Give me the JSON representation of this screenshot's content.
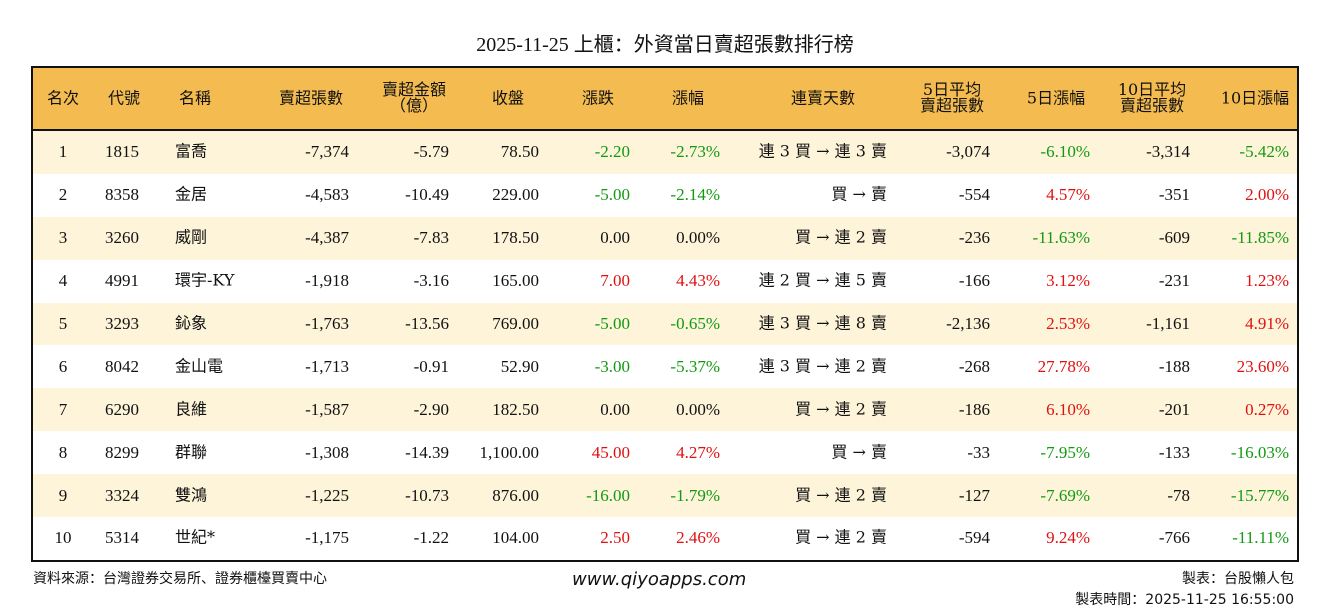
{
  "title": "2025-11-25 上櫃：外資當日賣超張數排行榜",
  "headers": [
    "名次",
    "代號",
    "名稱",
    "賣超張數",
    "賣超金額\n（億）",
    "收盤",
    "漲跌",
    "漲幅",
    "連賣天數",
    "5日平均\n賣超張數",
    "5日漲幅",
    "10日平均\n賣超張數",
    "10日漲幅"
  ],
  "colors": {
    "header_bg": "#F4BC50",
    "odd_row_bg": "#FDF4D9",
    "up": "#E01010",
    "down": "#119A11"
  },
  "rows": [
    [
      "1",
      "1815",
      "富喬",
      "-7,374",
      "-5.79",
      "78.50",
      "-2.20",
      "-2.73%",
      "連 3 買 → 連 3 賣",
      "-3,074",
      "-6.10%",
      "-3,314",
      "-5.42%"
    ],
    [
      "2",
      "8358",
      "金居",
      "-4,583",
      "-10.49",
      "229.00",
      "-5.00",
      "-2.14%",
      "買 → 賣",
      "-554",
      "4.57%",
      "-351",
      "2.00%"
    ],
    [
      "3",
      "3260",
      "威剛",
      "-4,387",
      "-7.83",
      "178.50",
      "0.00",
      "0.00%",
      "買 → 連 2 賣",
      "-236",
      "-11.63%",
      "-609",
      "-11.85%"
    ],
    [
      "4",
      "4991",
      "環宇-KY",
      "-1,918",
      "-3.16",
      "165.00",
      "7.00",
      "4.43%",
      "連 2 買 → 連 5 賣",
      "-166",
      "3.12%",
      "-231",
      "1.23%"
    ],
    [
      "5",
      "3293",
      "鈊象",
      "-1,763",
      "-13.56",
      "769.00",
      "-5.00",
      "-0.65%",
      "連 3 買 → 連 8 賣",
      "-2,136",
      "2.53%",
      "-1,161",
      "4.91%"
    ],
    [
      "6",
      "8042",
      "金山電",
      "-1,713",
      "-0.91",
      "52.90",
      "-3.00",
      "-5.37%",
      "連 3 買 → 連 2 賣",
      "-268",
      "27.78%",
      "-188",
      "23.60%"
    ],
    [
      "7",
      "6290",
      "良維",
      "-1,587",
      "-2.90",
      "182.50",
      "0.00",
      "0.00%",
      "買 → 連 2 賣",
      "-186",
      "6.10%",
      "-201",
      "0.27%"
    ],
    [
      "8",
      "8299",
      "群聯",
      "-1,308",
      "-14.39",
      "1,100.00",
      "45.00",
      "4.27%",
      "買 → 賣",
      "-33",
      "-7.95%",
      "-133",
      "-16.03%"
    ],
    [
      "9",
      "3324",
      "雙鴻",
      "-1,225",
      "-10.73",
      "876.00",
      "-16.00",
      "-1.79%",
      "買 → 連 2 賣",
      "-127",
      "-7.69%",
      "-78",
      "-15.77%"
    ],
    [
      "10",
      "5314",
      "世紀*",
      "-1,175",
      "-1.22",
      "104.00",
      "2.50",
      "2.46%",
      "買 → 連 2 賣",
      "-594",
      "9.24%",
      "-766",
      "-11.11%"
    ]
  ],
  "footer": {
    "source": "資料來源：台灣證券交易所、證券櫃檯買賣中心",
    "website": "www.qiyoapps.com",
    "author": "製表：台股懶人包",
    "time": "製表時間：2025-11-25 16:55:00"
  }
}
